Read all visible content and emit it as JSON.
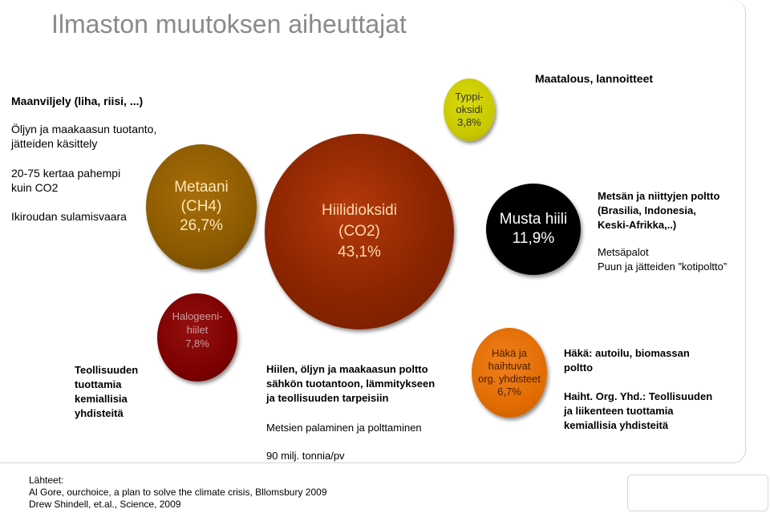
{
  "title": "Ilmaston muutoksen aiheuttajat",
  "colors": {
    "co2": "#8b2500",
    "ch4": "#8b5a00",
    "black_carbon": "#000000",
    "nox": "#c8c800",
    "halocarbons": "#7a0000",
    "co_voc": "#e06b00",
    "title": "#8a8a8a"
  },
  "bubbles": {
    "co2": {
      "lines": [
        "Hiilidioksidi",
        "(CO2)",
        "43,1%"
      ],
      "percent": 43.1
    },
    "ch4": {
      "lines": [
        "Metaani",
        "(CH4)",
        "26,7%"
      ],
      "percent": 26.7
    },
    "black_carbon": {
      "lines": [
        "Musta hiili",
        "11,9%"
      ],
      "percent": 11.9
    },
    "nox": {
      "lines": [
        "Typpi-",
        "oksidi",
        "3,8%"
      ],
      "percent": 3.8
    },
    "halocarbons": {
      "lines": [
        "Halogeeni-",
        "hiilet",
        "7,8%"
      ],
      "percent": 7.8
    },
    "co_voc": {
      "lines": [
        "Häkä ja",
        "haihtuvat",
        "org. yhdisteet",
        "6,7%"
      ],
      "percent": 6.7
    }
  },
  "labels": {
    "maanviljely": "Maanviljely (liha, riisi, ...)",
    "oljyn_1": "Öljyn ja maakaasun tuotanto,",
    "oljyn_2": "jätteiden käsittely",
    "kertaa_1": "20-75 kertaa pahempi",
    "kertaa_2": "kuin CO2",
    "ikiroudan": "Ikiroudan sulamisvaara",
    "maatalous": "Maatalous, lannoitteet",
    "metsan_1": "Metsän ja niittyjen poltto",
    "metsan_2": "(Brasilia, Indonesia,",
    "metsan_3": "Keski-Afrikka,..)",
    "metsapalot": "Metsäpalot",
    "puun": "Puun ja jätteiden ”kotipoltto”",
    "teoll_1": "Teollisuuden",
    "teoll_2": "tuottamia",
    "teoll_3": "kemiallisia",
    "teoll_4": "yhdisteitä",
    "hiilen_1": "Hiilen, öljyn ja maakaasun poltto",
    "hiilen_2": "sähkön tuotantoon, lämmitykseen",
    "hiilen_3": "ja teollisuuden tarpeisiin",
    "metsien": "Metsien palaminen ja polttaminen",
    "milj": "90 milj. tonnia/pv",
    "haka_1": "Häkä: autoilu, biomassan",
    "haka_2": "poltto",
    "haiht_1": "Haiht. Org. Yhd.: Teollisuuden",
    "haiht_2": "ja liikenteen tuottamia",
    "haiht_3": "kemiallisia yhdisteitä"
  },
  "sources": {
    "heading": "Lähteet:",
    "items": [
      "Al Gore, ourchoice, a plan to solve the climate crisis, Bllomsbury 2009",
      "Drew Shindell, et.al., Science, 2009"
    ]
  }
}
